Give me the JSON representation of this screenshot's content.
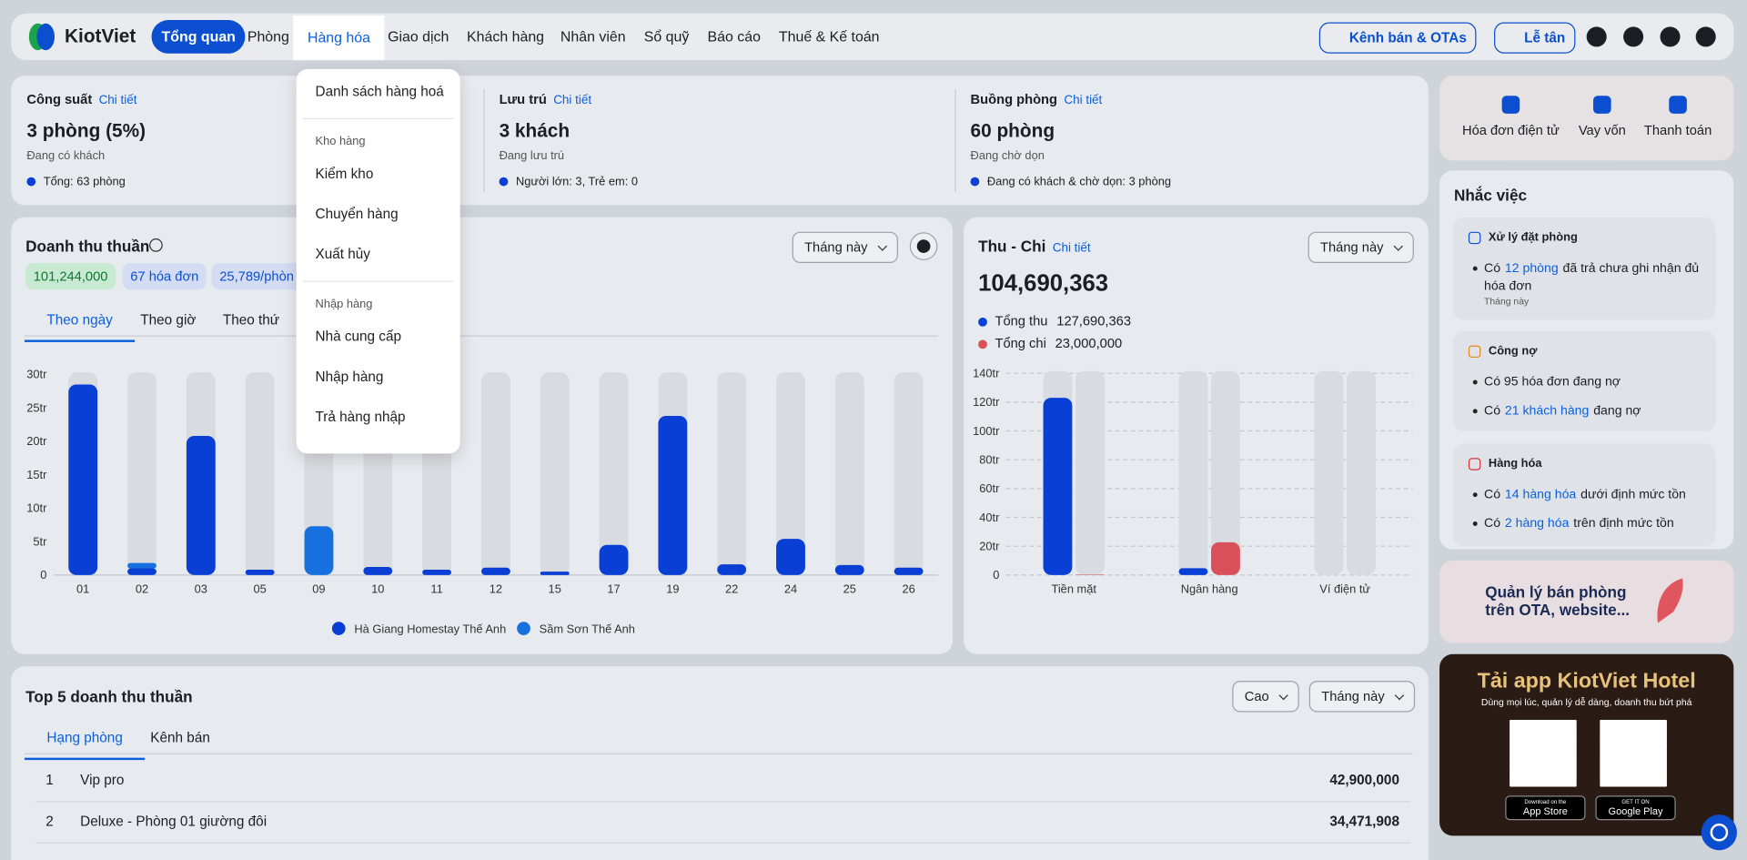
{
  "nav": {
    "logo": "KiotViet",
    "items": [
      "Tổng quan",
      "Phòng",
      "Hàng hóa",
      "Giao dịch",
      "Khách hàng",
      "Nhân viên",
      "Sổ quỹ",
      "Báo cáo",
      "Thuế & Kế toán"
    ],
    "right_buttons": [
      "Kênh bán & OTAs",
      "Lễ tân"
    ]
  },
  "dropdown": {
    "groups": [
      {
        "items": [
          "Danh sách hàng hoá"
        ]
      },
      {
        "title": "Kho hàng",
        "items": [
          "Kiểm kho",
          "Chuyển hàng",
          "Xuất hủy"
        ]
      },
      {
        "title": "Nhập hàng",
        "items": [
          "Nhà cung cấp",
          "Nhập hàng",
          "Trả hàng nhập"
        ]
      }
    ]
  },
  "stats": [
    {
      "title": "Công suất",
      "link": "Chi tiết",
      "value": "3 phòng (5%)",
      "caption": "Đang có khách",
      "note": "Tổng: 63 phòng"
    },
    {
      "title": "Lưu trú",
      "link": "Chi tiết",
      "value": "3 khách",
      "caption": "Đang lưu trú",
      "note": "Người lớn: 3, Trẻ em: 0"
    },
    {
      "title": "Buồng phòng",
      "link": "Chi tiết",
      "value": "60 phòng",
      "caption": "Đang chờ dọn",
      "note": "Đang có khách & chờ dọn: 3 phòng"
    }
  ],
  "quick_actions": [
    "Hóa đơn điện tử",
    "Vay vốn",
    "Thanh toán"
  ],
  "revenue": {
    "title": "Doanh thu thuần",
    "badges": [
      "101,244,000",
      "67 hóa đơn",
      "25,789/phòn"
    ],
    "period": "Tháng này",
    "tabs": [
      "Theo ngày",
      "Theo giờ",
      "Theo thứ"
    ],
    "chart": {
      "type": "bar",
      "stacked": true,
      "grid": false,
      "categories": [
        "01",
        "02",
        "03",
        "05",
        "09",
        "10",
        "11",
        "12",
        "15",
        "17",
        "19",
        "22",
        "24",
        "25",
        "26"
      ],
      "series": [
        {
          "name": "Hà Giang Homestay Thế Anh",
          "color": "#0a3fd6",
          "values": [
            28.5,
            1.0,
            20.8,
            0.8,
            0,
            1.2,
            0.8,
            1.1,
            0.5,
            4.5,
            23.8,
            1.6,
            5.4,
            1.5,
            1.1
          ]
        },
        {
          "name": "Sầm Sơn Thế Anh",
          "color": "#1670e0",
          "values": [
            0,
            0.8,
            0,
            0,
            7.3,
            0,
            0,
            0,
            0,
            0,
            0,
            0,
            0,
            0,
            0
          ]
        }
      ],
      "ylim": [
        0,
        30
      ],
      "yticks": [
        0,
        {
          "value": 5,
          "label": "5tr"
        },
        {
          "value": 10,
          "label": "10tr"
        },
        {
          "value": 15,
          "label": "15tr"
        },
        {
          "value": 20,
          "label": "20tr"
        },
        {
          "value": 25,
          "label": "25tr"
        },
        {
          "value": 30,
          "label": "30tr"
        }
      ]
    }
  },
  "cashflow": {
    "title": "Thu - Chi",
    "link": "Chi tiết",
    "period": "Tháng này",
    "total": "104,690,363",
    "legend": [
      {
        "label": "Tổng thu",
        "amount": "127,690,363",
        "color": "#0a3fd6"
      },
      {
        "label": "Tổng chi",
        "amount": "23,000,000",
        "color": "#d9505a"
      }
    ],
    "chart": {
      "type": "bar",
      "stacked": false,
      "grid": true,
      "categories": [
        "Tiền mặt",
        "Ngân hàng",
        "Ví điện tử"
      ],
      "series": [
        {
          "color": "#0a3fd6",
          "values": [
            123,
            4.7,
            0
          ]
        },
        {
          "color": "#d9505a",
          "values": [
            0.3,
            22.7,
            0
          ]
        }
      ],
      "ylim": [
        0,
        140
      ],
      "yticks": [
        0,
        {
          "value": 20,
          "label": "20tr"
        },
        {
          "value": 40,
          "label": "40tr"
        },
        {
          "value": 60,
          "label": "60tr"
        },
        {
          "value": 80,
          "label": "80tr"
        },
        {
          "value": 100,
          "label": "100tr"
        },
        {
          "value": 120,
          "label": "120tr"
        },
        {
          "value": 140,
          "label": "140tr"
        }
      ]
    }
  },
  "reminders": {
    "title": "Nhắc việc",
    "sections": [
      {
        "title": "Xử lý đặt phòng",
        "items": [
          {
            "before": "Có",
            "link": "12 phòng",
            "after": "đã trả chưa ghi nhận đủ hóa đơn",
            "note": "Tháng này"
          }
        ]
      },
      {
        "title": "Công nợ",
        "items": [
          {
            "before": "Có 95 hóa đơn đang nợ"
          },
          {
            "before": "Có",
            "link": "21 khách hàng",
            "after": "đang nợ"
          }
        ]
      },
      {
        "title": "Hàng hóa",
        "items": [
          {
            "before": "Có",
            "link": "14 hàng hóa",
            "after": "dưới định mức tồn"
          },
          {
            "before": "Có",
            "link": "2 hàng hóa",
            "after": "trên định mức tồn"
          }
        ]
      }
    ]
  },
  "promo": {
    "text": "Quản lý bán phòng trên OTA, website..."
  },
  "app": {
    "title": "Tải app KiotViet Hotel",
    "subtitle": "Dùng mọi lúc, quản lý dễ dàng, doanh thu bứt phá",
    "stores": [
      {
        "small": "Download on the",
        "name": "App Store"
      },
      {
        "small": "GET IT ON",
        "name": "Google Play"
      }
    ]
  },
  "top5": {
    "title": "Top 5 doanh thu thuần",
    "sort": "Cao",
    "period": "Tháng này",
    "tabs": [
      "Hạng phòng",
      "Kênh bán"
    ],
    "rows": [
      [
        "1",
        "Vip pro",
        "42,900,000"
      ],
      [
        "2",
        "Deluxe - Phòng 01 giường đôi",
        "34,471,908"
      ]
    ]
  }
}
